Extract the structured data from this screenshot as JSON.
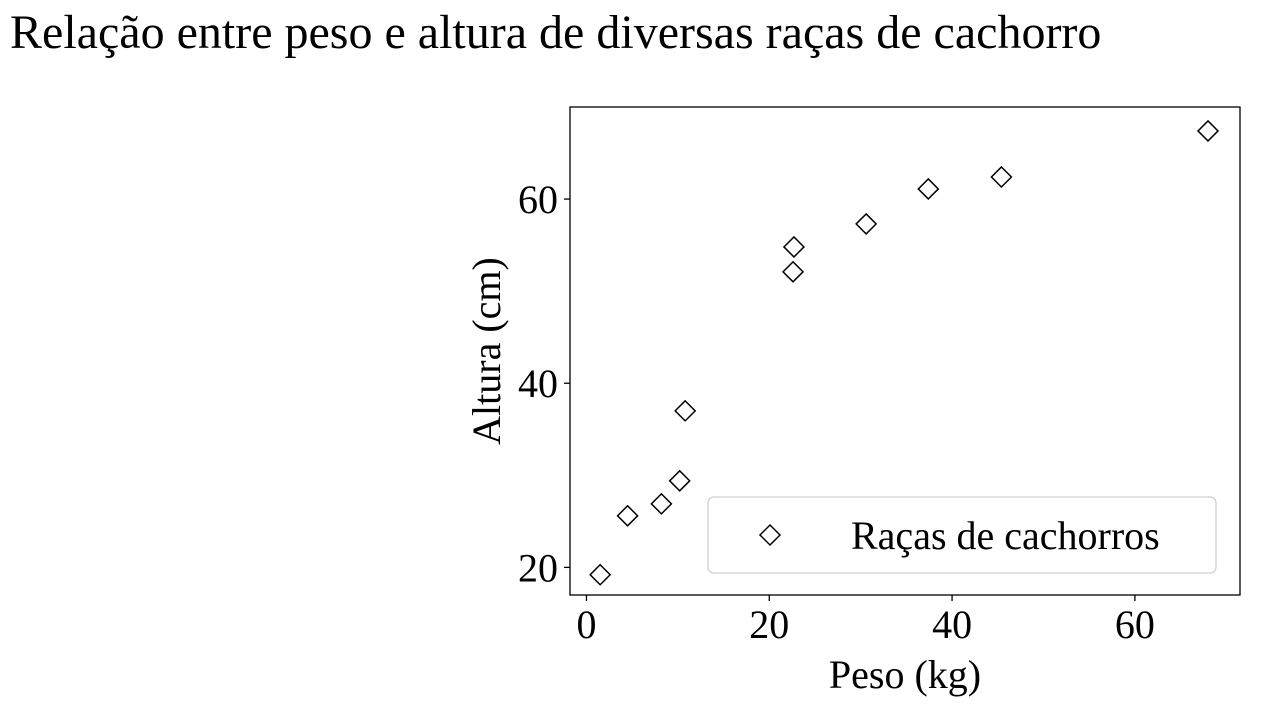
{
  "chart_data": {
    "type": "scatter",
    "title": "Relação entre peso e altura de diversas raças de cachorro",
    "xlabel": "Peso (kg)",
    "ylabel": "Altura (cm)",
    "xlim": [
      -1.8,
      71.5
    ],
    "ylim": [
      17,
      70
    ],
    "xticks": [
      0,
      20,
      40,
      60
    ],
    "yticks": [
      20,
      40,
      60
    ],
    "grid": false,
    "legend_position": "lower-right",
    "marker": "diamond",
    "marker_fill": "#ffffff",
    "marker_edge": "#000000",
    "series": [
      {
        "name": "Raças de cachorros",
        "x": [
          1.5,
          4.5,
          8.2,
          10.2,
          10.8,
          22.6,
          22.7,
          30.6,
          37.4,
          45.4,
          68.0
        ],
        "y": [
          19.2,
          25.6,
          26.9,
          29.4,
          37.0,
          52.1,
          54.8,
          57.3,
          61.1,
          62.4,
          67.4
        ]
      }
    ]
  }
}
